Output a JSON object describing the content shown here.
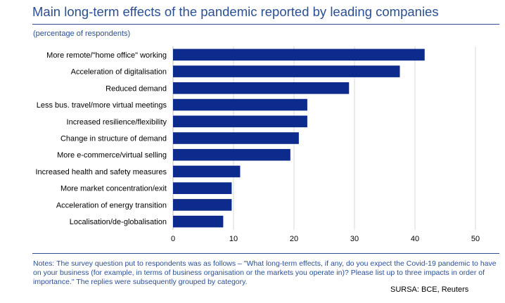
{
  "header": {
    "title": "Main long-term effects of the pandemic reported by leading companies",
    "subtitle": "(percentage of respondents)"
  },
  "chart_data": {
    "type": "bar",
    "orientation": "horizontal",
    "categories": [
      "More remote/\"home office\" working",
      "Acceleration of digitalisation",
      "Reduced demand",
      "Less bus. travel/more virtual meetings",
      "Increased resilience/flexibility",
      "Change in structure of demand",
      "More e-commerce/virtual selling",
      "Increased health and safety measures",
      "More market concentration/exit",
      "Acceleration of energy transition",
      "Localisation/de-globalisation"
    ],
    "values": [
      41.6,
      37.5,
      29.1,
      22.2,
      22.2,
      20.8,
      19.4,
      11.1,
      9.7,
      9.7,
      8.3
    ],
    "xlim": [
      0,
      50
    ],
    "xticks": [
      "0",
      "10",
      "20",
      "30",
      "40",
      "50"
    ],
    "bar_color": "#0d2b8c",
    "grid": "vertical"
  },
  "footer": {
    "notes": "Notes: The survey question put to respondents was as follows – \"What long-term effects, if any, do you expect the Covid-19 pandemic to have on your business (for example, in terms of business organisation or the markets you operate in)? Please list up to three impacts in order of importance.\" The replies were subsequently grouped by category.",
    "source": "SURSA: BCE, Reuters"
  }
}
